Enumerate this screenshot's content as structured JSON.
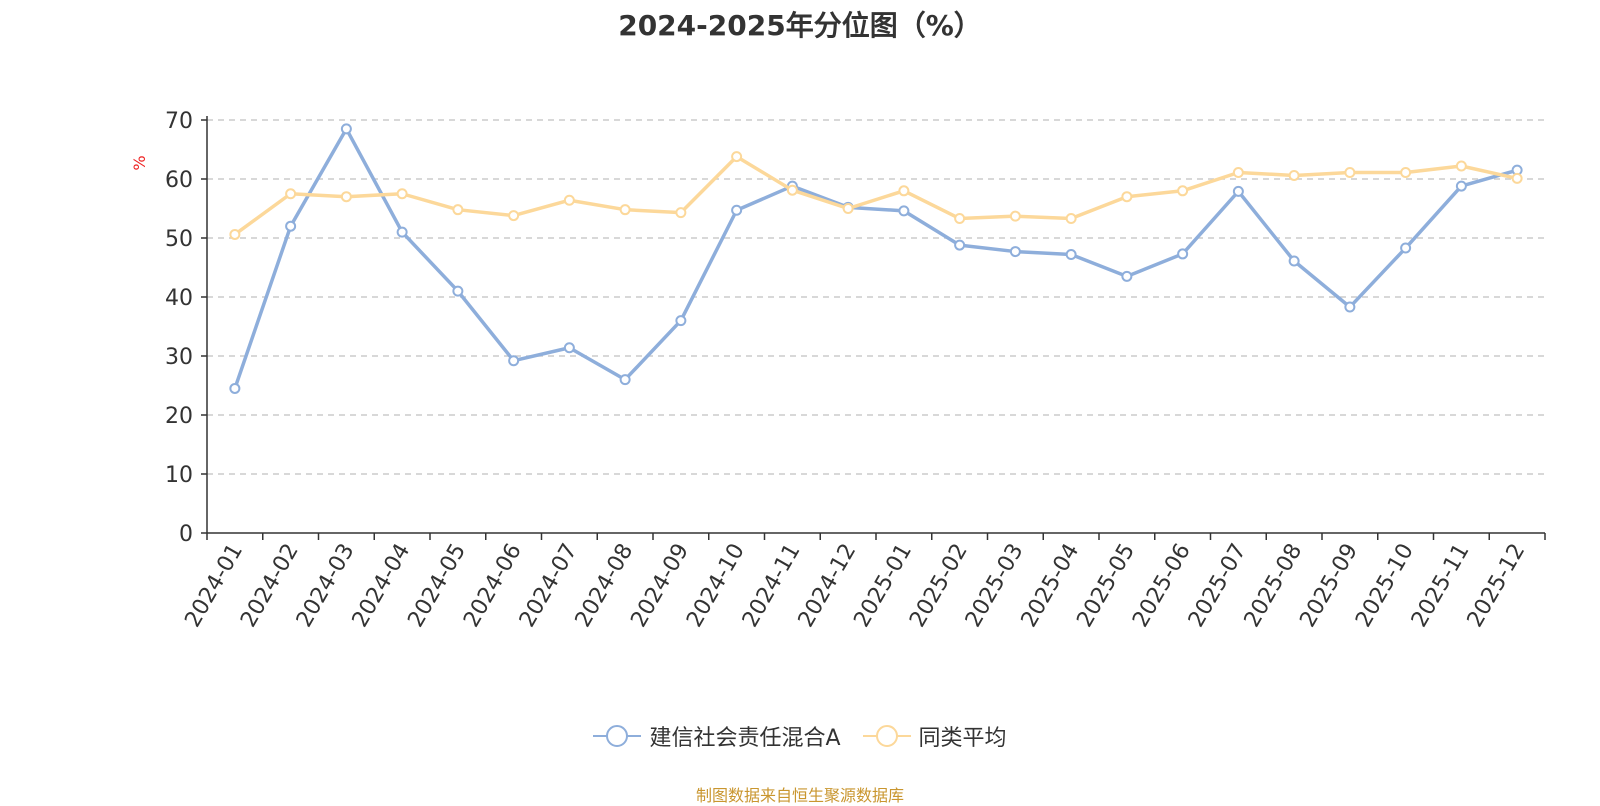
{
  "chart_data": {
    "type": "line",
    "title": "2024-2025年分位图（%）",
    "ylabel": "%",
    "xlabel": "",
    "ylim": [
      0,
      70
    ],
    "yticks": [
      0,
      10,
      20,
      30,
      40,
      50,
      60,
      70
    ],
    "grid": true,
    "legend_position": "bottom",
    "categories": [
      "2024-01",
      "2024-02",
      "2024-03",
      "2024-04",
      "2024-05",
      "2024-06",
      "2024-07",
      "2024-08",
      "2024-09",
      "2024-10",
      "2024-11",
      "2024-12",
      "2025-01",
      "2025-02",
      "2025-03",
      "2025-04",
      "2025-05",
      "2025-06",
      "2025-07",
      "2025-08",
      "2025-09",
      "2025-10",
      "2025-11",
      "2025-12"
    ],
    "series": [
      {
        "name": "建信社会责任混合A",
        "color": "#8eaedb",
        "values": [
          24.5,
          52.0,
          68.5,
          51.0,
          41.0,
          29.2,
          31.4,
          26.0,
          36.0,
          54.7,
          58.8,
          55.2,
          54.6,
          48.8,
          47.7,
          47.2,
          43.5,
          47.3,
          57.9,
          46.1,
          38.3,
          48.3,
          58.8,
          61.5
        ]
      },
      {
        "name": "同类平均",
        "color": "#fcd89a",
        "values": [
          50.6,
          57.5,
          57.0,
          57.5,
          54.8,
          53.8,
          56.4,
          54.8,
          54.3,
          63.8,
          58.1,
          55.0,
          58.0,
          53.3,
          53.7,
          53.3,
          57.0,
          58.0,
          61.1,
          60.6,
          61.1,
          61.1,
          62.2,
          60.1
        ]
      }
    ]
  },
  "footer": {
    "source": "制图数据来自恒生聚源数据库"
  }
}
